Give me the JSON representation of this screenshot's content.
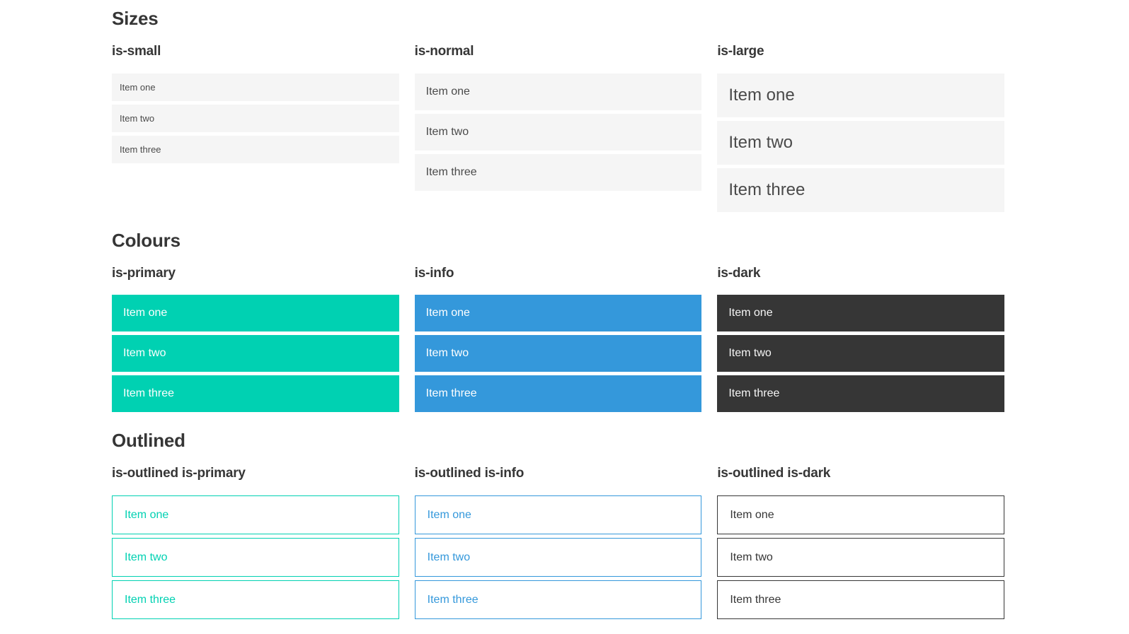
{
  "colors": {
    "primary": "#00d1b2",
    "info": "#3498db",
    "dark": "#363636",
    "light_gray_bg": "#f5f5f5",
    "gray_text": "#4a4a4a",
    "heading_text": "#363636",
    "white_text": "#ffffff"
  },
  "sections": [
    {
      "title": "Sizes",
      "columns": [
        {
          "header": "is-small",
          "items": [
            "Item one",
            "Item two",
            "Item three"
          ]
        },
        {
          "header": "is-normal",
          "items": [
            "Item one",
            "Item two",
            "Item three"
          ]
        },
        {
          "header": "is-large",
          "items": [
            "Item one",
            "Item two",
            "Item three"
          ]
        }
      ]
    },
    {
      "title": "Colours",
      "columns": [
        {
          "header": "is-primary",
          "items": [
            "Item one",
            "Item two",
            "Item three"
          ]
        },
        {
          "header": "is-info",
          "items": [
            "Item one",
            "Item two",
            "Item three"
          ]
        },
        {
          "header": "is-dark",
          "items": [
            "Item one",
            "Item two",
            "Item three"
          ]
        }
      ]
    },
    {
      "title": "Outlined",
      "columns": [
        {
          "header": "is-outlined is-primary",
          "items": [
            "Item one",
            "Item two",
            "Item three"
          ]
        },
        {
          "header": "is-outlined is-info",
          "items": [
            "Item one",
            "Item two",
            "Item three"
          ]
        },
        {
          "header": "is-outlined is-dark",
          "items": [
            "Item one",
            "Item two",
            "Item three"
          ]
        }
      ]
    }
  ]
}
